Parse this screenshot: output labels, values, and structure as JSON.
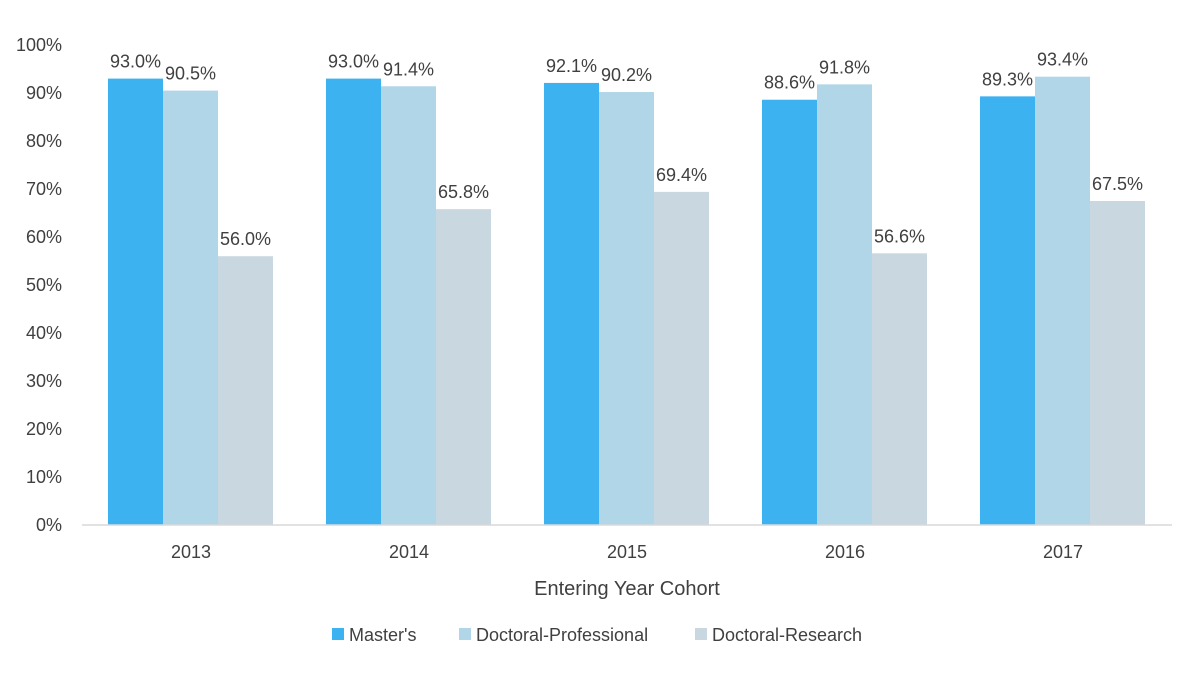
{
  "chart_data": {
    "type": "bar",
    "title": "",
    "xlabel": "Entering Year Cohort",
    "ylabel": "",
    "categories": [
      "2013",
      "2014",
      "2015",
      "2016",
      "2017"
    ],
    "series": [
      {
        "name": "Master's",
        "color": "#3DB2F0",
        "values": [
          93.0,
          93.0,
          92.1,
          88.6,
          89.3
        ],
        "labels": [
          "93.0%",
          "93.0%",
          "92.1%",
          "88.6%",
          "89.3%"
        ]
      },
      {
        "name": "Doctoral-Professional",
        "color": "#B0D6E8",
        "values": [
          90.5,
          91.4,
          90.2,
          91.8,
          93.4
        ],
        "labels": [
          "90.5%",
          "91.4%",
          "90.2%",
          "91.8%",
          "93.4%"
        ]
      },
      {
        "name": "Doctoral-Research",
        "color": "#C9D7E0",
        "values": [
          56.0,
          65.8,
          69.4,
          56.6,
          67.5
        ],
        "labels": [
          "56.0%",
          "65.8%",
          "69.4%",
          "56.6%",
          "67.5%"
        ]
      }
    ],
    "ylim": [
      0,
      100
    ],
    "yticks": [
      0,
      10,
      20,
      30,
      40,
      50,
      60,
      70,
      80,
      90,
      100
    ],
    "ytick_labels": [
      "0%",
      "10%",
      "20%",
      "30%",
      "40%",
      "50%",
      "60%",
      "70%",
      "80%",
      "90%",
      "100%"
    ],
    "grid": false,
    "legend_position": "bottom"
  }
}
